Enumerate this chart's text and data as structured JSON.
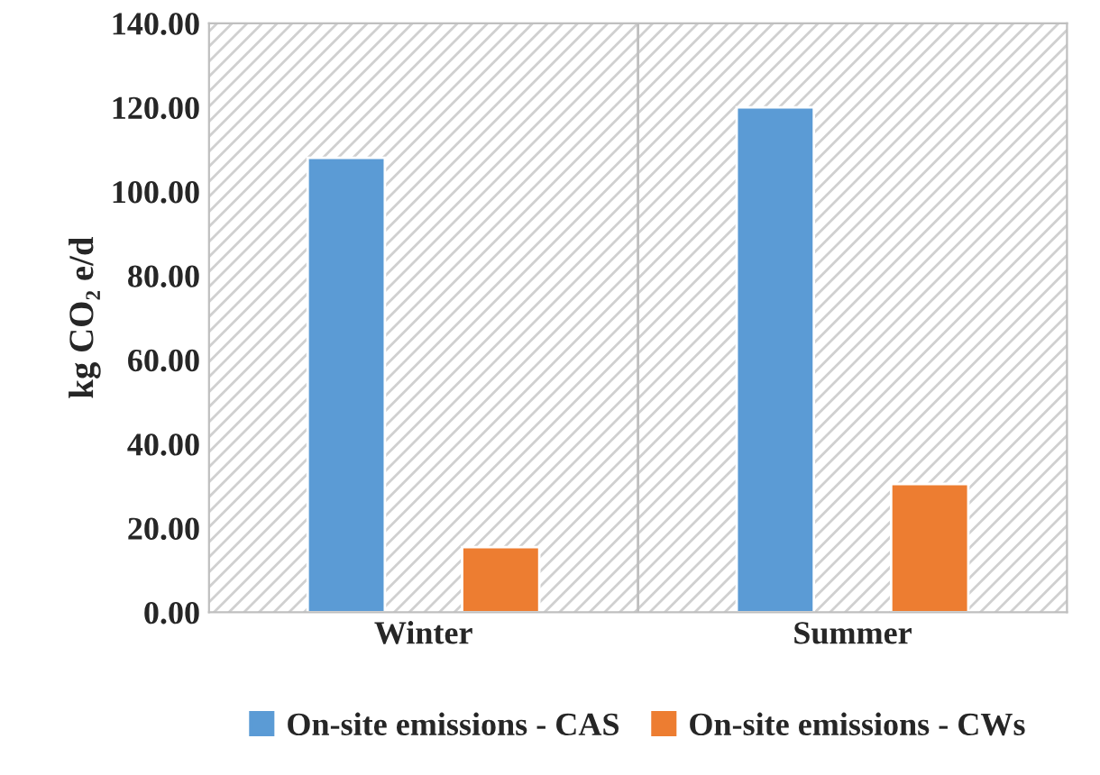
{
  "chart_data": {
    "type": "bar",
    "ylabel": "kg CO₂ e/d",
    "categories": [
      "Winter",
      "Summer"
    ],
    "series": [
      {
        "name": "On-site emissions - CAS",
        "color": "#5b9bd5",
        "values": [
          108,
          120
        ]
      },
      {
        "name": "On-site emissions - CWs",
        "color": "#ed7d31",
        "values": [
          15.5,
          30.5
        ]
      }
    ],
    "ylim": [
      0,
      140
    ],
    "yticks": [
      {
        "value": 0,
        "label": "0.00"
      },
      {
        "value": 20,
        "label": "20.00"
      },
      {
        "value": 40,
        "label": "40.00"
      },
      {
        "value": 60,
        "label": "60.00"
      },
      {
        "value": 80,
        "label": "80.00"
      },
      {
        "value": 100,
        "label": "100.00"
      },
      {
        "value": 120,
        "label": "120.00"
      },
      {
        "value": 140,
        "label": "140.00"
      }
    ],
    "grid": false,
    "legend": "bottom"
  }
}
